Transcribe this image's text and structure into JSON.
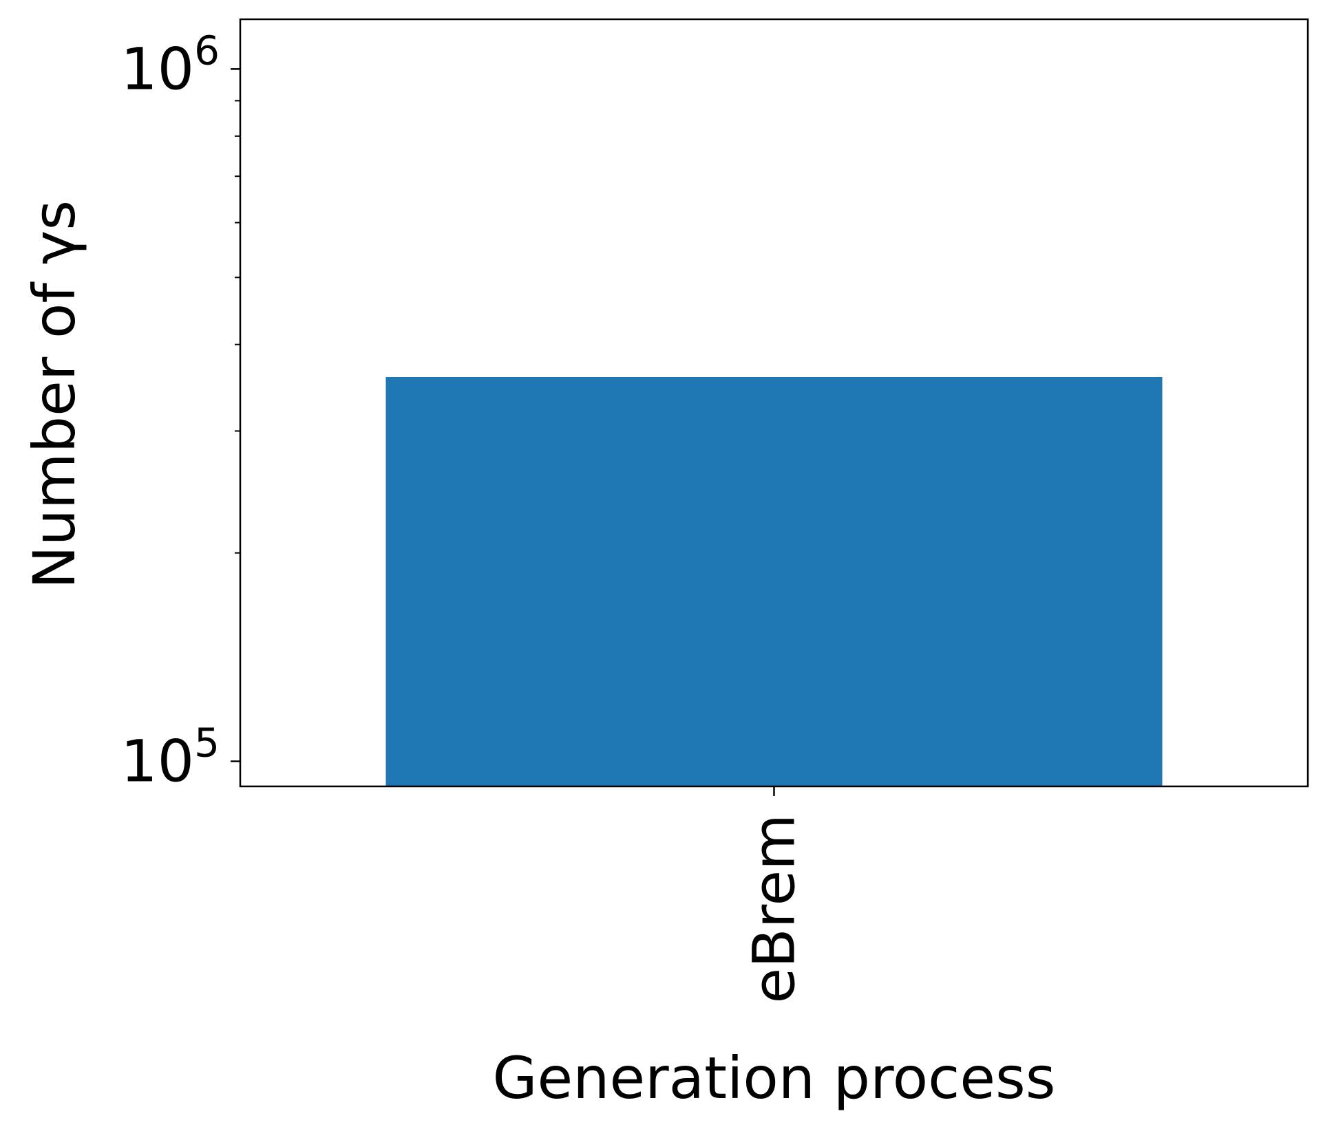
{
  "chart_data": {
    "type": "bar",
    "title": "",
    "xlabel": "Generation process",
    "ylabel": "Number of γs",
    "yscale": "log",
    "ylim": [
      92000,
      1180000
    ],
    "categories": [
      "eBrem"
    ],
    "values": [
      359000
    ],
    "colors": {
      "bar": "#1f77b4",
      "axes": "#000000",
      "background": "#ffffff"
    },
    "yticks": [
      {
        "base": "10",
        "exponent": "5",
        "value": 100000
      },
      {
        "base": "10",
        "exponent": "6",
        "value": 1000000
      }
    ],
    "grid": false,
    "legend": "none",
    "xtick_rotation": "vertical"
  }
}
